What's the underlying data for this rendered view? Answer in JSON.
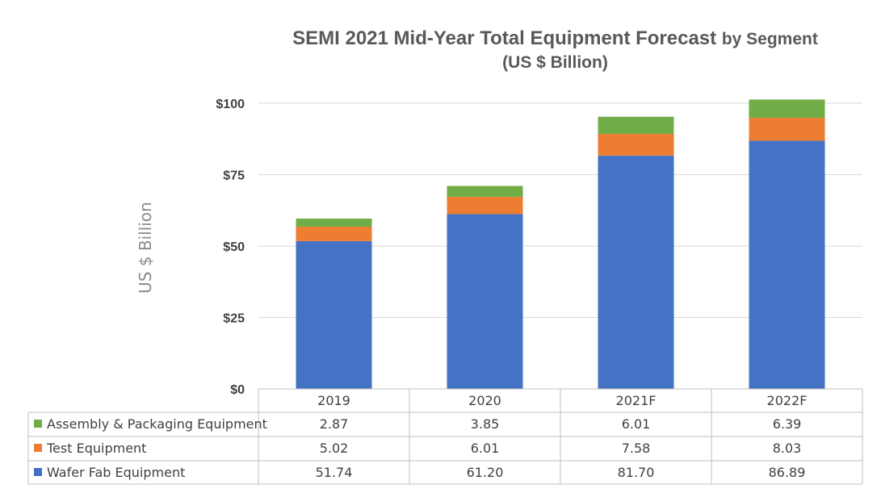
{
  "chart_data": {
    "type": "bar",
    "stacked": true,
    "title": "SEMI 2021 Mid-Year Total Equipment Forecast",
    "title_suffix": "by Segment",
    "subtitle": "(US $ Billion)",
    "ylabel": "US $ Billion",
    "xlabel": "",
    "ylim": [
      0,
      100
    ],
    "yticks": [
      {
        "value": 0,
        "label": "$0"
      },
      {
        "value": 25,
        "label": "$25"
      },
      {
        "value": 50,
        "label": "$50"
      },
      {
        "value": 75,
        "label": "$75"
      },
      {
        "value": 100,
        "label": "$100"
      }
    ],
    "grid": true,
    "legend_position": "data-table",
    "categories": [
      "2019",
      "2020",
      "2021F",
      "2022F"
    ],
    "series": [
      {
        "name": "Wafer Fab Equipment",
        "color": "#4472C4",
        "values": [
          51.74,
          61.2,
          81.7,
          86.89
        ],
        "labels": [
          "51.74",
          "61.20",
          "81.70",
          "86.89"
        ]
      },
      {
        "name": "Test Equipment",
        "color": "#ED7D31",
        "values": [
          5.02,
          6.01,
          7.58,
          8.03
        ],
        "labels": [
          "5.02",
          "6.01",
          "7.58",
          "8.03"
        ]
      },
      {
        "name": "Assembly & Packaging Equipment",
        "color": "#70AD47",
        "values": [
          2.87,
          3.85,
          6.01,
          6.39
        ],
        "labels": [
          "2.87",
          "3.85",
          "6.01",
          "6.39"
        ]
      }
    ],
    "table_row_order": [
      2,
      1,
      0
    ]
  }
}
